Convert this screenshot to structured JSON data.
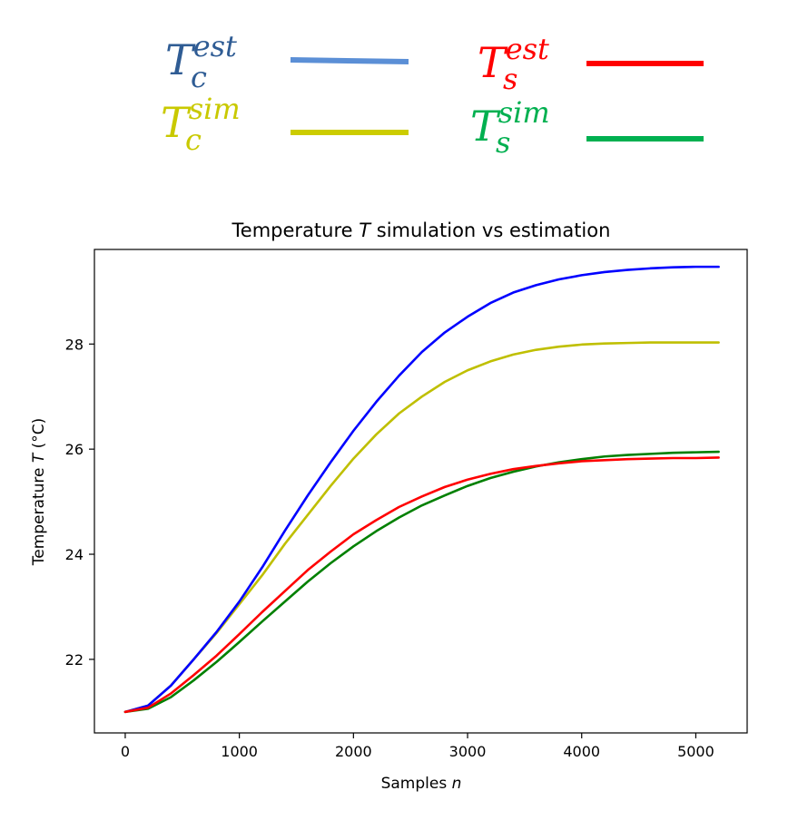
{
  "chart_data": {
    "type": "line",
    "title": "Temperature T simulation vs estimation",
    "title_parts": {
      "prefix": "Temperature ",
      "var": "T",
      "suffix": " simulation vs estimation"
    },
    "xlabel": "Samples n",
    "xlabel_parts": {
      "prefix": "Samples ",
      "var": "n"
    },
    "ylabel": "Temperature T (°C)",
    "ylabel_parts": {
      "prefix": "Temperature ",
      "var": "T",
      "suffix": " (°C)"
    },
    "xlim": [
      -270,
      5450
    ],
    "ylim": [
      20.6,
      29.8
    ],
    "xticks": [
      0,
      1000,
      2000,
      3000,
      4000,
      5000
    ],
    "yticks": [
      22,
      24,
      26,
      28
    ],
    "xtick_labels": [
      "0",
      "1000",
      "2000",
      "3000",
      "4000",
      "5000"
    ],
    "ytick_labels": [
      "22",
      "24",
      "26",
      "28"
    ],
    "grid": false,
    "legend_position": "top",
    "series": [
      {
        "name": "T_c^est",
        "legend": {
          "base": "T",
          "sub": "c",
          "sup": "est"
        },
        "color": "#0000ff",
        "legend_color": "#5b8fd6",
        "label_color": "#2f5c94",
        "x": [
          0,
          200,
          400,
          600,
          800,
          1000,
          1200,
          1400,
          1600,
          1800,
          2000,
          2200,
          2400,
          2600,
          2800,
          3000,
          3200,
          3400,
          3600,
          3800,
          4000,
          4200,
          4400,
          4600,
          4800,
          5000,
          5200
        ],
        "y": [
          21.0,
          21.12,
          21.5,
          22.0,
          22.52,
          23.1,
          23.75,
          24.45,
          25.12,
          25.75,
          26.35,
          26.9,
          27.4,
          27.85,
          28.22,
          28.52,
          28.78,
          28.98,
          29.12,
          29.23,
          29.31,
          29.37,
          29.41,
          29.44,
          29.46,
          29.47,
          29.47
        ]
      },
      {
        "name": "T_c^sim",
        "legend": {
          "base": "T",
          "sub": "c",
          "sup": "sim"
        },
        "color": "#bfbf00",
        "legend_color": "#cccc00",
        "label_color": "#c9c900",
        "x": [
          0,
          200,
          400,
          600,
          800,
          1000,
          1200,
          1400,
          1600,
          1800,
          2000,
          2200,
          2400,
          2600,
          2800,
          3000,
          3200,
          3400,
          3600,
          3800,
          4000,
          4200,
          4400,
          4600,
          4800,
          5000,
          5200
        ],
        "y": [
          21.0,
          21.12,
          21.5,
          22.0,
          22.5,
          23.05,
          23.6,
          24.2,
          24.75,
          25.3,
          25.82,
          26.28,
          26.68,
          27.0,
          27.28,
          27.5,
          27.67,
          27.8,
          27.89,
          27.95,
          27.99,
          28.01,
          28.02,
          28.03,
          28.03,
          28.03,
          28.03
        ]
      },
      {
        "name": "T_s^est",
        "legend": {
          "base": "T",
          "sub": "s",
          "sup": "est"
        },
        "color": "#ff0000",
        "legend_color": "#ff0000",
        "label_color": "#ff0000",
        "x": [
          0,
          200,
          400,
          600,
          800,
          1000,
          1200,
          1400,
          1600,
          1800,
          2000,
          2200,
          2400,
          2600,
          2800,
          3000,
          3200,
          3400,
          3600,
          3800,
          4000,
          4200,
          4400,
          4600,
          4800,
          5000,
          5200
        ],
        "y": [
          21.0,
          21.08,
          21.35,
          21.7,
          22.07,
          22.48,
          22.9,
          23.3,
          23.7,
          24.05,
          24.38,
          24.65,
          24.9,
          25.1,
          25.28,
          25.42,
          25.53,
          25.62,
          25.68,
          25.73,
          25.77,
          25.79,
          25.81,
          25.82,
          25.83,
          25.83,
          25.84
        ]
      },
      {
        "name": "T_s^sim",
        "legend": {
          "base": "T",
          "sub": "s",
          "sup": "sim"
        },
        "color": "#008000",
        "legend_color": "#00b050",
        "label_color": "#00b050",
        "x": [
          0,
          200,
          400,
          600,
          800,
          1000,
          1200,
          1400,
          1600,
          1800,
          2000,
          2200,
          2400,
          2600,
          2800,
          3000,
          3200,
          3400,
          3600,
          3800,
          4000,
          4200,
          4400,
          4600,
          4800,
          5000,
          5200
        ],
        "y": [
          21.0,
          21.06,
          21.28,
          21.6,
          21.95,
          22.33,
          22.72,
          23.1,
          23.48,
          23.83,
          24.15,
          24.44,
          24.7,
          24.93,
          25.12,
          25.3,
          25.45,
          25.57,
          25.67,
          25.75,
          25.81,
          25.86,
          25.89,
          25.91,
          25.93,
          25.94,
          25.95
        ]
      }
    ]
  }
}
